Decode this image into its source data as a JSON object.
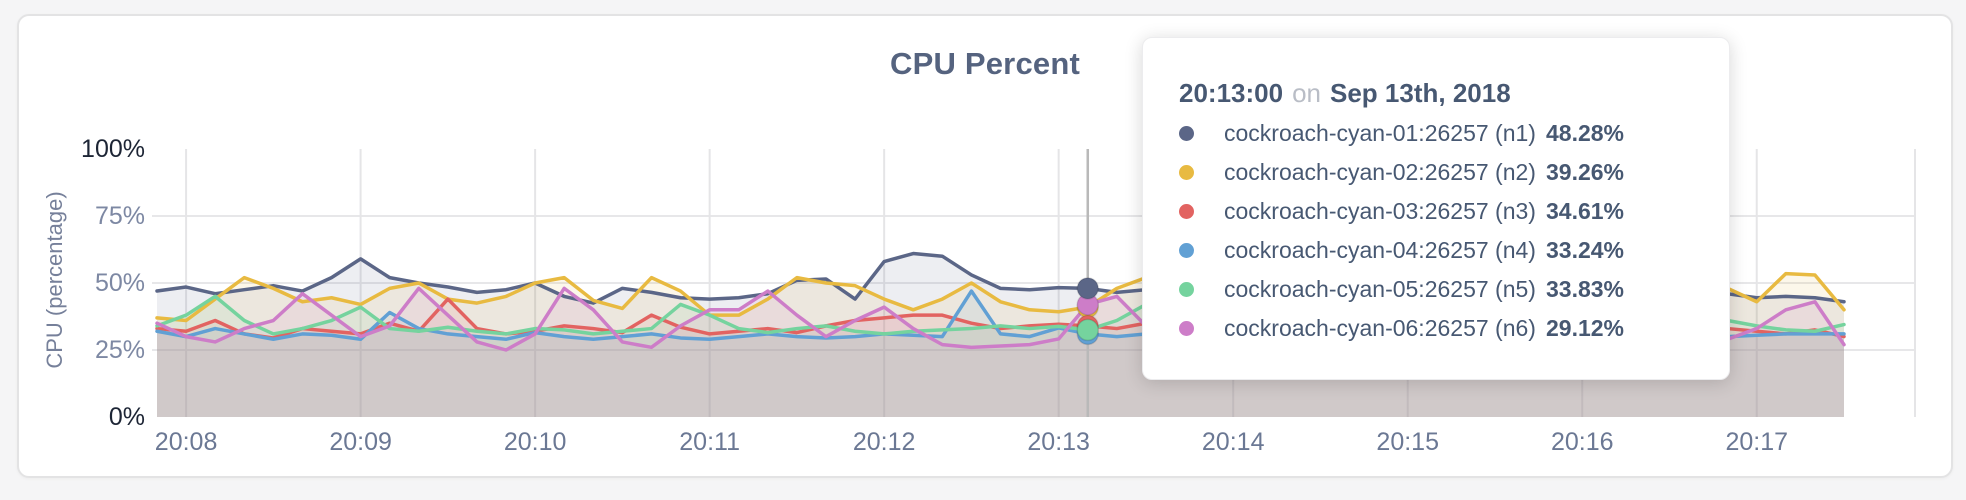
{
  "chart_title": "CPU Percent",
  "tooltip": {
    "time": "20:13:00",
    "conjunction": "on",
    "date": "Sep 13th, 2018",
    "rows": [
      {
        "label": "cockroach-cyan-01:26257 (n1)",
        "value": "48.28%",
        "color": "#5b6687"
      },
      {
        "label": "cockroach-cyan-02:26257 (n2)",
        "value": "39.26%",
        "color": "#e8ba41"
      },
      {
        "label": "cockroach-cyan-03:26257 (n3)",
        "value": "34.61%",
        "color": "#e26361"
      },
      {
        "label": "cockroach-cyan-04:26257 (n4)",
        "value": "33.24%",
        "color": "#61a0d4"
      },
      {
        "label": "cockroach-cyan-05:26257 (n5)",
        "value": "33.83%",
        "color": "#75d39e"
      },
      {
        "label": "cockroach-cyan-06:26257 (n6)",
        "value": "29.12%",
        "color": "#cd7dc8"
      }
    ]
  },
  "chart_data": {
    "type": "line",
    "title": "CPU Percent",
    "xlabel": "",
    "ylabel": "CPU (percentage)",
    "ylim": [
      0,
      100
    ],
    "grid": true,
    "area_fill": true,
    "x_start": "20:07:50",
    "x_end": "20:17:30",
    "x_interval_seconds": 10,
    "hover_index": 32,
    "hover_time": "20:13:00",
    "y_ticks": [
      {
        "label": "100%",
        "value": 100,
        "strong": true
      },
      {
        "label": "75%",
        "value": 75,
        "strong": false
      },
      {
        "label": "50%",
        "value": 50,
        "strong": false
      },
      {
        "label": "25%",
        "value": 25,
        "strong": false
      },
      {
        "label": "0%",
        "value": 0,
        "strong": true
      }
    ],
    "x_ticks": [
      "20:08",
      "20:09",
      "20:10",
      "20:11",
      "20:12",
      "20:13",
      "20:14",
      "20:15",
      "20:16",
      "20:17"
    ],
    "series": [
      {
        "name": "cockroach-cyan-01:26257 (n1)",
        "id": "n1",
        "color": "#5b6687",
        "values": [
          47,
          48.5,
          46,
          47.5,
          49,
          47,
          52,
          59,
          52,
          50,
          48.5,
          46.5,
          47.5,
          50,
          45,
          42.5,
          48,
          46.5,
          44.5,
          44,
          44.5,
          46,
          51,
          51.5,
          44,
          58,
          61,
          60,
          53,
          48,
          47.5,
          48.28,
          48,
          46.5,
          47.5,
          47,
          46.5,
          47.5,
          48,
          47,
          46.5,
          47.5,
          47,
          46.5,
          47.5,
          48,
          47.5,
          47,
          48,
          47.5,
          47,
          48,
          47.5,
          47,
          46,
          44.5,
          45,
          44.5,
          43
        ]
      },
      {
        "name": "cockroach-cyan-02:26257 (n2)",
        "id": "n2",
        "color": "#e8ba41",
        "values": [
          37,
          36,
          44,
          52,
          48,
          43,
          44.5,
          42,
          48,
          50,
          44,
          42.5,
          45,
          50,
          52,
          43.5,
          40.5,
          52,
          47,
          38,
          38,
          44,
          52,
          50,
          49,
          44,
          40,
          44,
          50,
          43,
          40,
          39.26,
          41,
          48,
          52,
          50,
          47,
          45,
          46,
          48,
          46,
          44,
          45,
          47,
          46,
          44,
          46,
          48,
          47,
          45,
          46,
          47,
          48,
          47,
          48,
          43,
          53.5,
          53,
          40
        ]
      },
      {
        "name": "cockroach-cyan-03:26257 (n3)",
        "id": "n3",
        "color": "#e26361",
        "values": [
          33,
          32,
          36,
          31,
          29.5,
          33,
          32,
          31,
          35,
          32,
          44,
          33,
          31,
          32,
          34,
          33,
          31.5,
          38,
          33.5,
          31,
          32,
          33,
          31.5,
          34,
          36,
          37,
          38,
          38,
          35,
          33,
          34,
          34.61,
          34,
          33,
          35,
          34,
          33,
          34.5,
          33,
          32,
          34,
          33.5,
          34,
          33,
          32,
          34,
          35,
          33,
          34,
          33,
          36,
          34,
          32,
          31.5,
          33,
          32,
          31,
          32.5,
          30
        ]
      },
      {
        "name": "cockroach-cyan-04:26257 (n4)",
        "id": "n4",
        "color": "#61a0d4",
        "values": [
          32,
          30,
          33,
          31,
          29,
          31,
          30.5,
          29,
          39,
          33,
          31,
          30,
          29,
          31.5,
          30,
          29,
          30,
          31,
          29.5,
          29,
          30,
          31,
          30,
          29.5,
          30,
          31,
          30.5,
          30,
          47,
          31,
          30,
          33.24,
          31,
          30,
          31,
          30,
          29.5,
          31,
          30,
          29,
          30.5,
          31,
          30,
          29.5,
          30,
          31,
          30,
          29.5,
          31,
          30,
          29,
          30,
          29.5,
          29,
          30,
          30.5,
          31,
          31,
          31
        ]
      },
      {
        "name": "cockroach-cyan-05:26257 (n5)",
        "id": "n5",
        "color": "#75d39e",
        "values": [
          34,
          38,
          45,
          36,
          31,
          33,
          36,
          41,
          33,
          32,
          33.5,
          32,
          31,
          33,
          32.5,
          31,
          32,
          33,
          42,
          38,
          33,
          31.5,
          33,
          34,
          32,
          31,
          32,
          32.5,
          33,
          34,
          33,
          33.83,
          32.5,
          36,
          42,
          38,
          34,
          33,
          32,
          33.5,
          34,
          33,
          32.5,
          33,
          34,
          33,
          32,
          33.5,
          33,
          34,
          33,
          32.5,
          34,
          36,
          36,
          34,
          32.5,
          32,
          34.5
        ]
      },
      {
        "name": "cockroach-cyan-06:26257 (n6)",
        "id": "n6",
        "color": "#cd7dc8",
        "values": [
          35,
          30,
          28,
          33,
          36,
          46,
          38,
          30,
          34,
          48,
          38,
          28,
          25,
          31,
          48,
          40,
          28,
          26,
          34,
          40,
          40,
          47,
          38,
          30,
          36,
          41,
          33,
          27,
          26,
          26.5,
          27,
          29.12,
          42,
          45,
          34,
          27,
          26,
          28,
          32,
          30,
          30,
          32,
          29,
          27,
          29,
          31,
          28,
          27,
          30,
          29,
          28,
          30,
          29,
          31,
          29,
          33,
          40,
          43,
          27
        ]
      }
    ]
  }
}
